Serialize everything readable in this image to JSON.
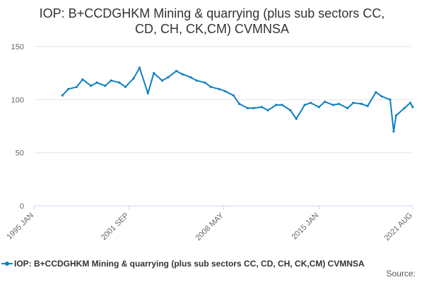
{
  "colors": {
    "series": "#0f7fc0",
    "grid": "#e6e6e6",
    "axis": "#ccd6eb",
    "text": "#333333"
  },
  "chart_data": {
    "type": "line",
    "title_line1": "IOP: B+CCDGHKM Mining & quarrying (plus sub sectors CC,",
    "title_line2": "CD, CH, CK,CM) CVMNSA",
    "xlabel": "",
    "ylabel": "",
    "ylim": [
      0,
      150
    ],
    "yticks": [
      "0",
      "50",
      "100",
      "150"
    ],
    "xticks": [
      "1995 JAN",
      "2001 SEP",
      "2008 MAY",
      "2015 JAN",
      "2021 AUG"
    ],
    "xrange": [
      "1995-01",
      "2021-08"
    ],
    "grid": true,
    "legend_position": "bottom",
    "series": [
      {
        "name": "IOP: B+CCDGHKM Mining & quarrying (plus sub sectors CC, CD, CH, CK,CM) CVMNSA",
        "x": [
          "1997-01",
          "1997-06",
          "1998-01",
          "1998-06",
          "1999-01",
          "1999-06",
          "2000-01",
          "2000-06",
          "2001-01",
          "2001-06",
          "2002-01",
          "2002-06",
          "2003-01",
          "2003-06",
          "2004-01",
          "2004-06",
          "2005-01",
          "2005-06",
          "2006-01",
          "2006-06",
          "2007-01",
          "2007-06",
          "2008-01",
          "2008-06",
          "2009-01",
          "2009-06",
          "2010-01",
          "2010-06",
          "2011-01",
          "2011-06",
          "2012-01",
          "2012-06",
          "2013-01",
          "2013-06",
          "2014-01",
          "2014-06",
          "2015-01",
          "2015-06",
          "2016-01",
          "2016-06",
          "2017-01",
          "2017-06",
          "2018-01",
          "2018-06",
          "2019-01",
          "2019-06",
          "2020-01",
          "2020-04",
          "2020-06",
          "2021-01",
          "2021-06",
          "2021-08"
        ],
        "values": [
          104,
          110,
          112,
          119,
          113,
          116,
          113,
          118,
          116,
          112,
          120,
          130,
          106,
          125,
          118,
          121,
          127,
          124,
          121,
          118,
          116,
          112,
          110,
          108,
          104,
          96,
          92,
          92,
          93,
          90,
          95,
          95,
          90,
          82,
          95,
          97,
          93,
          98,
          95,
          96,
          92,
          97,
          96,
          94,
          107,
          103,
          100,
          70,
          85,
          92,
          97,
          93
        ]
      }
    ]
  },
  "source_label": "Source:"
}
